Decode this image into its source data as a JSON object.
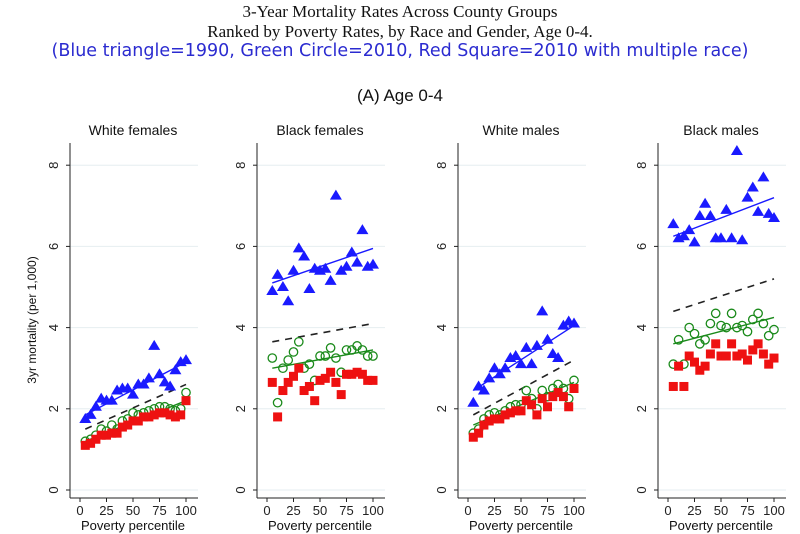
{
  "title_line1": "3-Year Mortality Rates Across County Groups",
  "title_line2": "Ranked by Poverty Rates, by Race and Gender, Age 0-4.",
  "legend_note": "(Blue triangle=1990,  Green Circle=2010,  Red Square=2010  with multiple race)",
  "subtitle": "(A) Age 0-4",
  "colors": {
    "blue": "#1a1aff",
    "green": "#1a8a1a",
    "red": "#ee1111",
    "dashed": "#222222"
  },
  "chart_data": {
    "type": "scatter",
    "xlabel": "Poverty percentile",
    "ylabel": "3yr mortality (per 1,000)",
    "xlim": [
      0,
      100
    ],
    "ylim": [
      0,
      8.6
    ],
    "xticks": [
      0,
      25,
      50,
      75,
      100
    ],
    "yticks": [
      0,
      2,
      4,
      6,
      8
    ],
    "x": [
      5,
      10,
      15,
      20,
      25,
      30,
      35,
      40,
      45,
      50,
      55,
      60,
      65,
      70,
      75,
      80,
      85,
      90,
      95,
      100
    ],
    "panels": [
      {
        "title": "White females",
        "series": [
          {
            "name": "1990",
            "marker": "triangle",
            "values": [
              1.75,
              1.85,
              2.05,
              2.25,
              2.2,
              2.2,
              2.45,
              2.5,
              2.5,
              2.35,
              2.6,
              2.6,
              2.75,
              3.55,
              2.85,
              2.65,
              2.55,
              2.95,
              3.15,
              3.2
            ],
            "fit": [
              1.85,
              3.15
            ]
          },
          {
            "name": "2010",
            "marker": "circle",
            "values": [
              1.2,
              1.25,
              1.35,
              1.5,
              1.45,
              1.6,
              1.5,
              1.7,
              1.75,
              1.9,
              1.85,
              1.9,
              1.95,
              2.0,
              2.05,
              2.05,
              2.0,
              1.95,
              2.0,
              2.4
            ],
            "fit": [
              1.2,
              2.2
            ]
          },
          {
            "name": "2010 multiple race",
            "marker": "square",
            "values": [
              1.1,
              1.15,
              1.25,
              1.35,
              1.35,
              1.4,
              1.4,
              1.55,
              1.6,
              1.7,
              1.7,
              1.8,
              1.8,
              1.85,
              1.9,
              1.9,
              1.85,
              1.8,
              1.85,
              2.2
            ]
          }
        ],
        "dashed_fit": [
          1.5,
          2.6
        ]
      },
      {
        "title": "Black females",
        "series": [
          {
            "name": "1990",
            "marker": "triangle",
            "values": [
              4.9,
              5.3,
              5.0,
              4.65,
              5.4,
              5.95,
              5.75,
              4.95,
              5.45,
              5.4,
              5.45,
              5.15,
              7.25,
              5.4,
              5.5,
              5.85,
              5.6,
              6.4,
              5.5,
              5.55
            ],
            "fit": [
              5.1,
              5.95
            ]
          },
          {
            "name": "2010",
            "marker": "circle",
            "values": [
              3.25,
              2.15,
              3.0,
              3.2,
              3.4,
              3.65,
              3.0,
              3.1,
              2.7,
              3.3,
              3.3,
              3.5,
              3.25,
              2.9,
              3.45,
              3.45,
              3.55,
              3.45,
              3.3,
              3.3
            ],
            "fit": [
              3.0,
              3.45
            ]
          },
          {
            "name": "2010 multiple race",
            "marker": "square",
            "values": [
              2.65,
              1.8,
              2.45,
              2.65,
              2.8,
              3.0,
              2.45,
              2.55,
              2.2,
              2.7,
              2.75,
              2.9,
              2.65,
              2.35,
              2.85,
              2.85,
              2.9,
              2.85,
              2.7,
              2.7
            ]
          }
        ],
        "dashed_fit": [
          3.65,
          4.1
        ]
      },
      {
        "title": "White males",
        "series": [
          {
            "name": "1990",
            "marker": "triangle",
            "values": [
              2.15,
              2.55,
              2.45,
              2.75,
              3.0,
              2.85,
              3.0,
              3.25,
              3.3,
              3.1,
              3.5,
              3.1,
              3.55,
              4.4,
              3.7,
              3.35,
              3.25,
              4.05,
              4.15,
              4.1
            ],
            "fit": [
              2.45,
              4.05
            ]
          },
          {
            "name": "2010",
            "marker": "circle",
            "values": [
              1.4,
              1.5,
              1.75,
              1.85,
              1.9,
              1.85,
              1.95,
              2.05,
              2.1,
              2.1,
              2.45,
              2.25,
              2.0,
              2.45,
              2.3,
              2.5,
              2.6,
              2.5,
              2.25,
              2.7
            ],
            "fit": [
              1.6,
              2.65
            ]
          },
          {
            "name": "2010 multiple race",
            "marker": "square",
            "values": [
              1.3,
              1.4,
              1.6,
              1.7,
              1.75,
              1.75,
              1.85,
              1.9,
              1.95,
              1.95,
              2.2,
              2.1,
              1.85,
              2.25,
              2.05,
              2.3,
              2.4,
              2.3,
              2.05,
              2.5
            ]
          }
        ],
        "dashed_fit": [
          1.85,
          3.2
        ]
      },
      {
        "title": "Black males",
        "series": [
          {
            "name": "1990",
            "marker": "triangle",
            "values": [
              6.55,
              6.2,
              6.25,
              6.4,
              6.1,
              6.75,
              7.05,
              6.75,
              6.2,
              6.2,
              6.9,
              6.2,
              8.35,
              6.15,
              7.2,
              7.45,
              6.85,
              7.7,
              6.8,
              6.7
            ],
            "fit": [
              6.25,
              7.2
            ]
          },
          {
            "name": "2010",
            "marker": "circle",
            "values": [
              3.1,
              3.7,
              3.1,
              4.0,
              3.85,
              3.6,
              3.7,
              4.1,
              4.35,
              4.05,
              4.0,
              4.35,
              4.0,
              4.05,
              3.9,
              4.2,
              4.35,
              4.1,
              3.8,
              3.95
            ],
            "fit": [
              3.6,
              4.25
            ]
          },
          {
            "name": "2010 multiple race",
            "marker": "square",
            "values": [
              2.55,
              3.05,
              2.55,
              3.3,
              3.15,
              2.95,
              3.05,
              3.35,
              3.6,
              3.3,
              3.3,
              3.6,
              3.3,
              3.35,
              3.2,
              3.45,
              3.6,
              3.35,
              3.1,
              3.25
            ]
          }
        ],
        "dashed_fit": [
          4.4,
          5.2
        ]
      }
    ]
  }
}
